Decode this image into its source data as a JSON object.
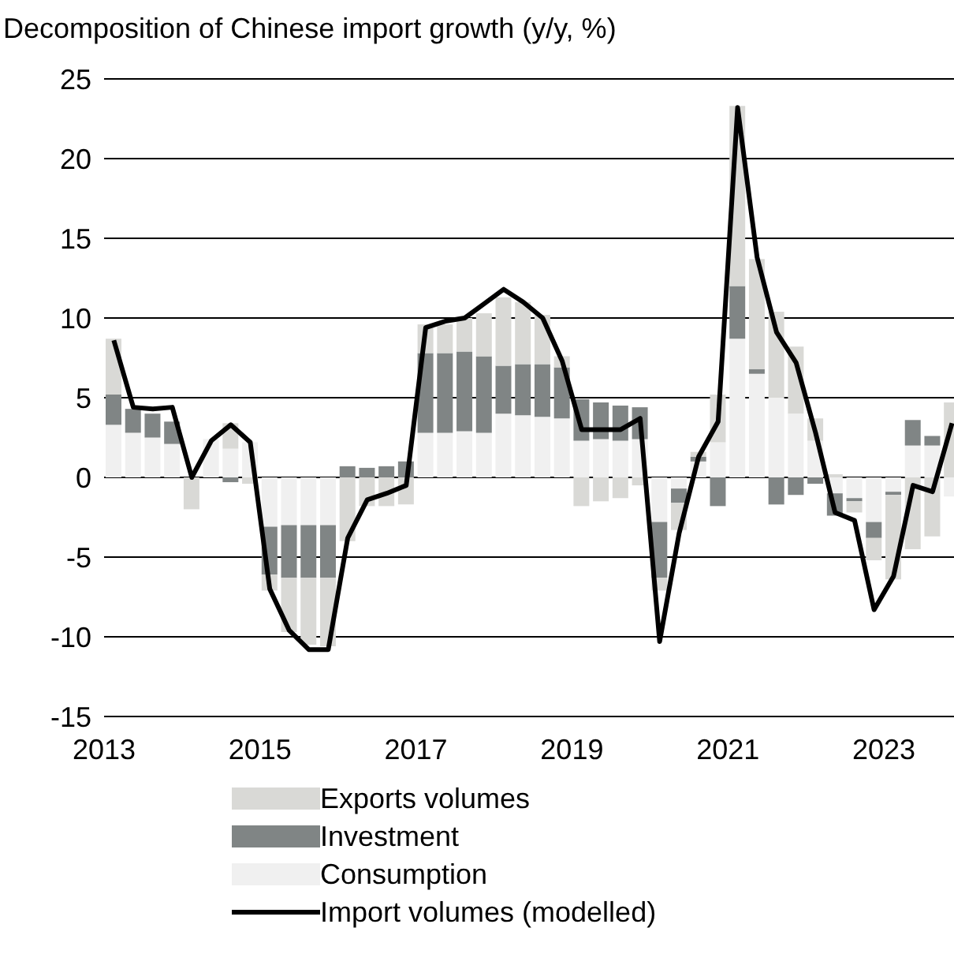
{
  "chart_data": {
    "type": "bar",
    "title": "Decomposition of Chinese import growth (y/y, %)",
    "stacked": true,
    "x": [
      2013.125,
      2013.375,
      2013.625,
      2013.875,
      2014.125,
      2014.375,
      2014.625,
      2014.875,
      2015.125,
      2015.375,
      2015.625,
      2015.875,
      2016.125,
      2016.375,
      2016.625,
      2016.875,
      2017.125,
      2017.375,
      2017.625,
      2017.875,
      2018.125,
      2018.375,
      2018.625,
      2018.875,
      2019.125,
      2019.375,
      2019.625,
      2019.875,
      2020.125,
      2020.375,
      2020.625,
      2020.875,
      2021.125,
      2021.375,
      2021.625,
      2021.875,
      2022.125,
      2022.375,
      2022.625,
      2022.875,
      2023.125,
      2023.375,
      2023.625,
      2023.875
    ],
    "series": [
      {
        "name": "Consumption",
        "color": "#f0f0f0",
        "values": [
          3.3,
          2.8,
          2.5,
          2.1,
          0,
          2.4,
          1.8,
          2.2,
          -3.1,
          -3.0,
          -3.0,
          -3.0,
          0,
          0,
          0,
          0,
          2.8,
          2.8,
          2.9,
          2.8,
          4.0,
          3.9,
          3.8,
          3.7,
          2.3,
          2.4,
          2.3,
          2.4,
          -2.8,
          -0.7,
          1.0,
          2.2,
          8.7,
          6.5,
          5.0,
          4.0,
          2.3,
          -1.0,
          -1.3,
          -2.8,
          -0.9,
          2.0,
          2.0,
          -1.2
        ]
      },
      {
        "name": "Investment",
        "color": "#808585",
        "values": [
          1.9,
          1.5,
          1.5,
          1.4,
          0,
          0,
          -0.3,
          0,
          -3.0,
          -3.3,
          -3.3,
          -3.3,
          0.7,
          0.6,
          0.7,
          1.0,
          5.0,
          5.0,
          5.0,
          4.8,
          3.0,
          3.2,
          3.3,
          3.2,
          2.6,
          2.3,
          2.2,
          2.0,
          -3.5,
          -0.9,
          0.3,
          -1.8,
          3.3,
          0.3,
          -1.7,
          -1.1,
          -0.4,
          -1.4,
          -0.2,
          -1.0,
          -0.2,
          1.6,
          0.6,
          0
        ]
      },
      {
        "name": "Exports volumes",
        "color": "#d9d9d6",
        "values": [
          3.5,
          0,
          0,
          0,
          -2.0,
          0,
          1.6,
          -0.4,
          -1.0,
          -3.4,
          -4.2,
          -4.3,
          -4.0,
          -1.8,
          -1.8,
          -1.7,
          1.8,
          1.8,
          2.1,
          2.7,
          4.3,
          3.9,
          3.1,
          0.7,
          -1.8,
          -1.5,
          -1.3,
          -0.5,
          -0.8,
          -1.7,
          0.3,
          3.0,
          11.3,
          6.9,
          5.4,
          4.2,
          1.4,
          0.2,
          -0.7,
          -1.4,
          -5.3,
          -4.5,
          -3.7,
          4.7
        ]
      },
      {
        "name": "Import volumes (modelled)",
        "type": "line",
        "color": "#000000",
        "values": [
          8.6,
          4.4,
          4.3,
          4.4,
          0,
          2.3,
          3.3,
          2.2,
          -7.0,
          -9.6,
          -10.8,
          -10.8,
          -3.8,
          -1.4,
          -1.0,
          -0.5,
          9.4,
          9.8,
          10.0,
          10.9,
          11.8,
          11.0,
          10.0,
          7.3,
          3.0,
          3.0,
          3.0,
          3.7,
          -10.3,
          -3.5,
          1.3,
          3.5,
          23.2,
          13.8,
          9.1,
          7.2,
          2.8,
          -2.2,
          -2.7,
          -8.3,
          -6.2,
          -0.5,
          -0.9,
          3.4
        ]
      }
    ],
    "xlim": [
      2013,
      2023.9
    ],
    "xticks": [
      2013,
      2015,
      2017,
      2019,
      2021,
      2023
    ],
    "ylim": [
      -15,
      25
    ],
    "yticks": [
      -15,
      -10,
      -5,
      0,
      5,
      10,
      15,
      20,
      25
    ],
    "grid": "y",
    "legend": "bottom"
  }
}
